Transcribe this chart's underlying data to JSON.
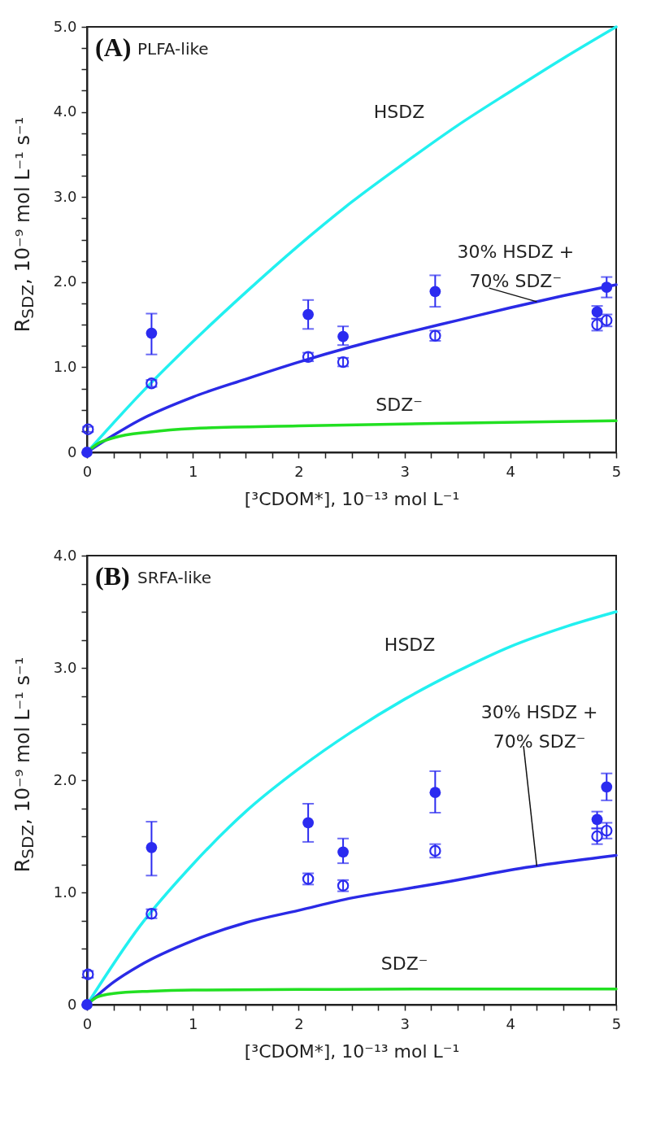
{
  "chart_data": [
    {
      "type": "line",
      "title": "(A)",
      "subtitle": "PLFA-like",
      "xlabel": "[³CDOM*], 10⁻¹³ mol L⁻¹",
      "ylabel": "R$_{SDZ}$, 10⁻⁹ mol L⁻¹ s⁻¹",
      "xlim": [
        0,
        5
      ],
      "ylim": [
        0,
        5
      ],
      "xticks": [
        0,
        {
          "value": 0.25,
          "label": null
        },
        {
          "value": 0.5,
          "label": null
        },
        {
          "value": 0.75,
          "label": null
        },
        1,
        {
          "value": 1.25,
          "label": null
        },
        {
          "value": 1.5,
          "label": null
        },
        {
          "value": 1.75,
          "label": null
        },
        2,
        {
          "value": 2.25,
          "label": null
        },
        {
          "value": 2.5,
          "label": null
        },
        {
          "value": 2.75,
          "label": null
        },
        3,
        {
          "value": 3.25,
          "label": null
        },
        {
          "value": 3.5,
          "label": null
        },
        {
          "value": 3.75,
          "label": null
        },
        4,
        {
          "value": 4.25,
          "label": null
        },
        {
          "value": 4.5,
          "label": null
        },
        {
          "value": 4.75,
          "label": null
        },
        5
      ],
      "yticks": [
        0,
        {
          "value": 0.25,
          "label": null
        },
        {
          "value": 0.5,
          "label": null
        },
        {
          "value": 0.75,
          "label": null
        },
        {
          "value": 1,
          "label": "1.0"
        },
        {
          "value": 1.25,
          "label": null
        },
        {
          "value": 1.5,
          "label": null
        },
        {
          "value": 1.75,
          "label": null
        },
        {
          "value": 2,
          "label": "2.0"
        },
        {
          "value": 2.25,
          "label": null
        },
        {
          "value": 2.5,
          "label": null
        },
        {
          "value": 2.75,
          "label": null
        },
        {
          "value": 3,
          "label": "3.0"
        },
        {
          "value": 3.25,
          "label": null
        },
        {
          "value": 3.5,
          "label": null
        },
        {
          "value": 3.75,
          "label": null
        },
        {
          "value": 4,
          "label": "4.0"
        },
        {
          "value": 4.25,
          "label": null
        },
        {
          "value": 4.5,
          "label": null
        },
        {
          "value": 4.75,
          "label": null
        },
        {
          "value": 5,
          "label": "5.0"
        }
      ],
      "grid": false,
      "line_style": "solid",
      "series": [
        {
          "name": "HSDZ",
          "color": "#22f0f0",
          "x": [
            0,
            0.5,
            1,
            1.5,
            2,
            2.5,
            3,
            3.5,
            4,
            4.5,
            5
          ],
          "values": [
            0,
            0.68,
            1.3,
            1.88,
            2.43,
            2.94,
            3.4,
            3.84,
            4.24,
            4.63,
            5.0
          ]
        },
        {
          "name": "30% HSDZ + 70% SDZ⁻",
          "color": "#2a2ae6",
          "x": [
            0,
            0.25,
            0.5,
            1,
            1.5,
            2,
            2.5,
            3,
            3.5,
            4,
            4.5,
            5
          ],
          "values": [
            0,
            0.2,
            0.38,
            0.65,
            0.86,
            1.06,
            1.24,
            1.4,
            1.55,
            1.7,
            1.84,
            1.97
          ]
        },
        {
          "name": "SDZ⁻",
          "color": "#22e022",
          "x": [
            0,
            0.1,
            0.25,
            0.6,
            1,
            2,
            3.3,
            5
          ],
          "values": [
            0,
            0.1,
            0.17,
            0.24,
            0.28,
            0.31,
            0.34,
            0.37
          ]
        },
        {
          "type": "scatter",
          "color": "#2b2bf0",
          "marker": "circle",
          "x": [
            0,
            0.61,
            2.09,
            2.42,
            3.29,
            4.82,
            4.91
          ],
          "values": [
            0,
            1.4,
            1.62,
            1.36,
            1.89,
            1.65,
            1.94
          ],
          "errors": [
            null,
            [
              1.15,
              1.63
            ],
            [
              1.45,
              1.79
            ],
            [
              1.26,
              1.48
            ],
            [
              1.71,
              2.08
            ],
            [
              1.57,
              1.72
            ],
            [
              1.82,
              2.06
            ]
          ]
        },
        {
          "type": "scatter",
          "color": "#2b2bf0",
          "marker": "circle",
          "x": [
            0.01,
            0.61,
            2.09,
            2.42,
            3.29,
            4.82,
            4.91
          ],
          "values": [
            0.27,
            0.81,
            1.12,
            1.06,
            1.37,
            1.5,
            1.55
          ],
          "errors": [
            0.03,
            0.04,
            0.05,
            0.05,
            0.06,
            0.07,
            0.07
          ]
        }
      ]
    },
    {
      "type": "line",
      "title": "(B)",
      "subtitle": "SRFA-like",
      "xlabel": "[³CDOM*], 10⁻¹³ mol L⁻¹",
      "ylabel": "R$_{SDZ}$, 10⁻⁹ mol L⁻¹ s⁻¹",
      "xlim": [
        0,
        5
      ],
      "ylim": [
        0,
        4
      ],
      "xticks": [
        0,
        {
          "value": 0.25,
          "label": null
        },
        {
          "value": 0.5,
          "label": null
        },
        {
          "value": 0.75,
          "label": null
        },
        1,
        {
          "value": 1.25,
          "label": null
        },
        {
          "value": 1.5,
          "label": null
        },
        {
          "value": 1.75,
          "label": null
        },
        2,
        {
          "value": 2.25,
          "label": null
        },
        {
          "value": 2.5,
          "label": null
        },
        {
          "value": 2.75,
          "label": null
        },
        3,
        {
          "value": 3.25,
          "label": null
        },
        {
          "value": 3.5,
          "label": null
        },
        {
          "value": 3.75,
          "label": null
        },
        4,
        {
          "value": 4.25,
          "label": null
        },
        {
          "value": 4.5,
          "label": null
        },
        {
          "value": 4.75,
          "label": null
        },
        5
      ],
      "yticks": [
        0,
        {
          "value": 0.25,
          "label": null
        },
        {
          "value": 0.5,
          "label": null
        },
        {
          "value": 0.75,
          "label": null
        },
        {
          "value": 1,
          "label": "1.0"
        },
        {
          "value": 1.25,
          "label": null
        },
        {
          "value": 1.5,
          "label": null
        },
        {
          "value": 1.75,
          "label": null
        },
        {
          "value": 2,
          "label": "2.0"
        },
        {
          "value": 2.25,
          "label": null
        },
        {
          "value": 2.5,
          "label": null
        },
        {
          "value": 2.75,
          "label": null
        },
        {
          "value": 3,
          "label": "3.0"
        },
        {
          "value": 3.25,
          "label": null
        },
        {
          "value": 3.5,
          "label": null
        },
        {
          "value": 3.75,
          "label": null
        },
        {
          "value": 4,
          "label": "4.0"
        }
      ],
      "grid": false,
      "line_style": "solid",
      "series": [
        {
          "name": "HSDZ",
          "color": "#22f0f0",
          "x": [
            0,
            0.5,
            1,
            1.5,
            2,
            2.5,
            3,
            3.5,
            4,
            4.5,
            5
          ],
          "values": [
            0,
            0.7,
            1.25,
            1.72,
            2.1,
            2.43,
            2.72,
            2.97,
            3.19,
            3.36,
            3.5
          ]
        },
        {
          "name": "30% HSDZ + 70% SDZ⁻",
          "color": "#2a2ae6",
          "x": [
            0,
            0.25,
            0.5,
            1,
            1.5,
            2,
            2.5,
            3,
            3.5,
            4,
            4.5,
            5
          ],
          "values": [
            0,
            0.2,
            0.35,
            0.57,
            0.73,
            0.84,
            0.95,
            1.03,
            1.11,
            1.2,
            1.27,
            1.33
          ]
        },
        {
          "name": "SDZ⁻",
          "color": "#22e022",
          "x": [
            0,
            0.1,
            0.25,
            0.6,
            1,
            2,
            3.3,
            5
          ],
          "values": [
            0,
            0.07,
            0.1,
            0.12,
            0.13,
            0.135,
            0.14,
            0.14
          ]
        },
        {
          "type": "scatter",
          "color": "#2b2bf0",
          "marker": "circle",
          "x": [
            0,
            0.61,
            2.09,
            2.42,
            3.29,
            4.82,
            4.91
          ],
          "values": [
            0,
            1.4,
            1.62,
            1.36,
            1.89,
            1.65,
            1.94
          ],
          "errors": [
            null,
            [
              1.15,
              1.63
            ],
            [
              1.45,
              1.79
            ],
            [
              1.26,
              1.48
            ],
            [
              1.71,
              2.08
            ],
            [
              1.57,
              1.72
            ],
            [
              1.82,
              2.06
            ]
          ]
        },
        {
          "type": "scatter",
          "color": "#2b2bf0",
          "marker": "circle",
          "x": [
            0.01,
            0.61,
            2.09,
            2.42,
            3.29,
            4.82,
            4.91
          ],
          "values": [
            0.27,
            0.81,
            1.12,
            1.06,
            1.37,
            1.5,
            1.55
          ],
          "errors": [
            0.03,
            0.04,
            0.05,
            0.05,
            0.06,
            0.07,
            0.07
          ]
        }
      ]
    }
  ]
}
